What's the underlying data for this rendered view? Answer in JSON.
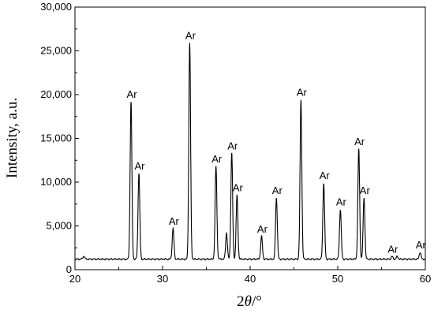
{
  "chart_data": {
    "type": "line",
    "xlabel": "2θ/°",
    "ylabel": "Intensity, a.u.",
    "xlim": [
      20,
      60
    ],
    "ylim": [
      0,
      30000
    ],
    "x_ticks": [
      20,
      30,
      40,
      50,
      60
    ],
    "y_ticks": [
      0,
      5000,
      10000,
      15000,
      20000,
      25000,
      30000
    ],
    "x_tick_labels": [
      "20",
      "30",
      "40",
      "50",
      "60"
    ],
    "y_tick_labels": [
      "0",
      "5,000",
      "10,000",
      "15,000",
      "20,000",
      "25,000",
      "30,000"
    ],
    "grid": false,
    "line_color": "#000000",
    "baseline": 1200,
    "peaks": [
      {
        "x": 21.0,
        "y": 1550,
        "label": ""
      },
      {
        "x": 26.4,
        "y": 19200,
        "label": "Ar"
      },
      {
        "x": 27.3,
        "y": 11000,
        "label": "Ar"
      },
      {
        "x": 31.2,
        "y": 4700,
        "label": "Ar"
      },
      {
        "x": 33.1,
        "y": 25900,
        "label": "Ar"
      },
      {
        "x": 36.1,
        "y": 11800,
        "label": "Ar"
      },
      {
        "x": 37.3,
        "y": 4200,
        "label": ""
      },
      {
        "x": 37.9,
        "y": 13300,
        "label": "Ar"
      },
      {
        "x": 38.5,
        "y": 8500,
        "label": "Ar"
      },
      {
        "x": 41.3,
        "y": 3800,
        "label": "Ar"
      },
      {
        "x": 43.0,
        "y": 8200,
        "label": "Ar"
      },
      {
        "x": 45.8,
        "y": 19400,
        "label": "Ar"
      },
      {
        "x": 48.4,
        "y": 9900,
        "label": "Ar"
      },
      {
        "x": 50.3,
        "y": 6900,
        "label": "Ar"
      },
      {
        "x": 52.4,
        "y": 13800,
        "label": "Ar"
      },
      {
        "x": 53.0,
        "y": 8200,
        "label": "Ar"
      },
      {
        "x": 56.2,
        "y": 1500,
        "label": "Ar"
      },
      {
        "x": 56.8,
        "y": 1500,
        "label": ""
      },
      {
        "x": 59.4,
        "y": 2000,
        "label": "Ar"
      }
    ]
  }
}
